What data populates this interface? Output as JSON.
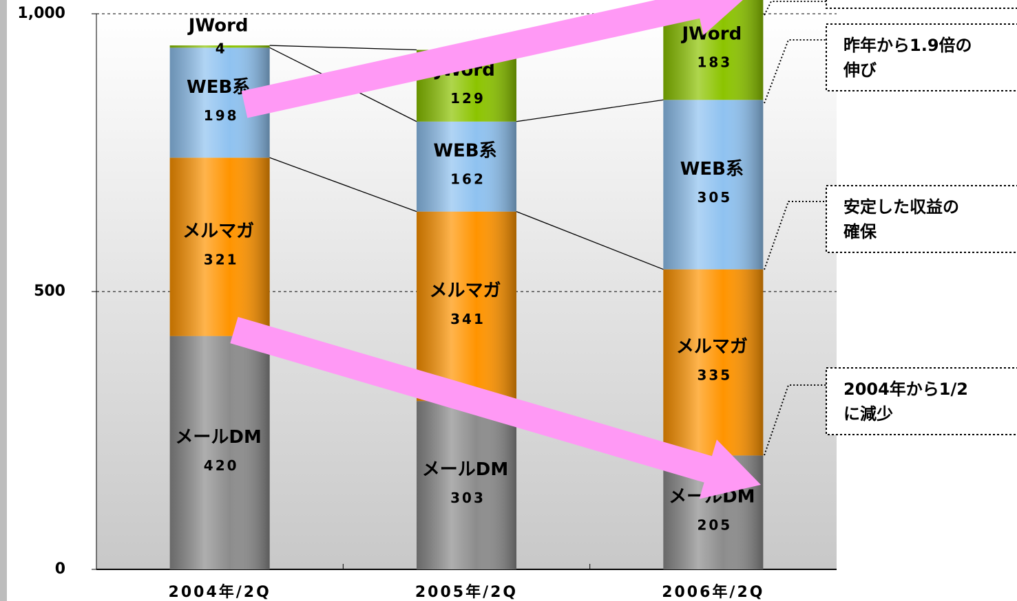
{
  "chart_data": {
    "type": "stacked_bar",
    "categories": [
      "2004年/2Q",
      "2005年/2Q",
      "2006年/2Q"
    ],
    "series": [
      {
        "name": "メールDM",
        "color": "#8c8c8c",
        "values": [
          420,
          303,
          205
        ]
      },
      {
        "name": "メルマガ",
        "color": "#ff9400",
        "values": [
          321,
          341,
          335
        ]
      },
      {
        "name": "WEB系",
        "color": "#8fc2f0",
        "values": [
          198,
          162,
          305
        ]
      },
      {
        "name": "JWord",
        "color": "#8cc400",
        "values": [
          4,
          129,
          183
        ]
      }
    ],
    "ylim": [
      0,
      1000
    ],
    "yticks": [
      0,
      500,
      {
        "value": 1000,
        "label": "1,000"
      }
    ],
    "grid": true,
    "annotations": [
      [
        "昨年から1.9倍の",
        "伸び"
      ],
      [
        "安定した収益の",
        "確保"
      ],
      [
        "2004年から1/2",
        "に減少"
      ]
    ]
  }
}
